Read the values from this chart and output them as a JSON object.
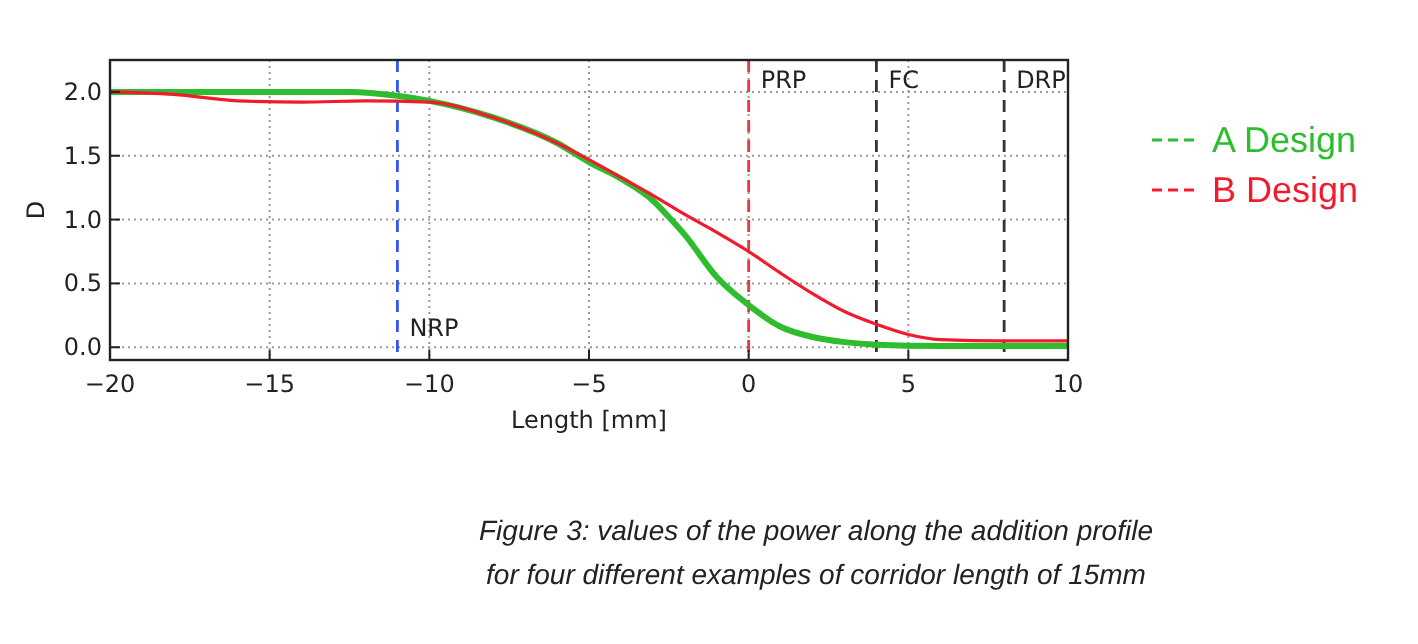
{
  "chart_data": {
    "type": "line",
    "xlabel": "Length [mm]",
    "ylabel": "D",
    "xlim": [
      -20,
      10
    ],
    "ylim": [
      -0.1,
      2.25
    ],
    "xticks": [
      -20,
      -15,
      -10,
      -5,
      0,
      5,
      10
    ],
    "yticks": [
      {
        "value": 0,
        "label": "0.0"
      },
      {
        "value": 0.5,
        "label": "0.5"
      },
      {
        "value": 1,
        "label": "1.0"
      },
      {
        "value": 1.5,
        "label": "1.5"
      },
      {
        "value": 2,
        "label": "2.0"
      }
    ],
    "grid": true,
    "legend": "right",
    "line_style": "solid",
    "marker": "none",
    "series": [
      {
        "name": "A Design",
        "color": "#2ebd2e",
        "x": [
          -20,
          -18,
          -15,
          -12.5,
          -11,
          -10,
          -8,
          -6,
          -5,
          -4,
          -3,
          -2.5,
          -2,
          -1,
          0,
          1,
          2,
          3,
          4,
          6,
          8,
          10
        ],
        "values": [
          2.0,
          2.0,
          2.0,
          2.0,
          1.97,
          1.93,
          1.8,
          1.6,
          1.45,
          1.32,
          1.15,
          1.02,
          0.88,
          0.55,
          0.33,
          0.16,
          0.08,
          0.04,
          0.02,
          0.01,
          0.01,
          0.01
        ]
      },
      {
        "name": "B Design",
        "color": "#f21b2d",
        "x": [
          -20,
          -18,
          -16,
          -14,
          -12,
          -10,
          -8,
          -6,
          -5,
          -4,
          -3,
          -2,
          -1,
          0,
          1,
          2,
          3,
          4,
          5,
          6,
          8,
          10
        ],
        "values": [
          2.0,
          1.98,
          1.93,
          1.92,
          1.93,
          1.92,
          1.8,
          1.6,
          1.47,
          1.33,
          1.19,
          1.04,
          0.9,
          0.75,
          0.58,
          0.42,
          0.28,
          0.18,
          0.1,
          0.06,
          0.05,
          0.05
        ]
      }
    ],
    "ref_lines": [
      {
        "axis": "x",
        "value": -11,
        "label": "NRP",
        "color": "#3355ee",
        "line_style": "dashed"
      },
      {
        "axis": "x",
        "value": 0,
        "label": "PRP",
        "color": "#ee3344",
        "line_style": "dashed"
      },
      {
        "axis": "x",
        "value": 4,
        "label": "FC",
        "color": "#333333",
        "line_style": "dashed"
      },
      {
        "axis": "x",
        "value": 8,
        "label": "DRP",
        "color": "#333333",
        "line_style": "dashed"
      }
    ],
    "annotations": [
      "Figure 3: values of the power along the addition profile",
      "for four different examples of corridor length of 15mm"
    ]
  }
}
